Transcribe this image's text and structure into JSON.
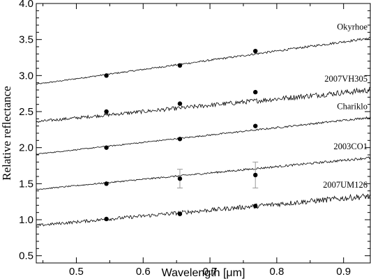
{
  "chart_data": {
    "type": "line",
    "xlabel": "Wavelength [μm]",
    "ylabel": "Relative reflectance",
    "xlim": [
      0.44,
      0.94
    ],
    "ylim": [
      0.4,
      4.0
    ],
    "xticks": [
      "0.5",
      "0.6",
      "0.7",
      "0.8",
      "0.9"
    ],
    "yticks": [
      "0.5",
      "1.0",
      "1.5",
      "2.0",
      "2.5",
      "3.0",
      "3.5",
      "4.0"
    ],
    "grid": false,
    "legend": "none",
    "series": [
      {
        "name": "Okyrhoe",
        "spectrum_start": 2.88,
        "spectrum_end": 3.52,
        "noise": 0.012,
        "points": [
          {
            "x": 0.545,
            "y": 3.0
          },
          {
            "x": 0.655,
            "y": 3.14
          },
          {
            "x": 0.768,
            "y": 3.34
          }
        ]
      },
      {
        "name": "2007VH305",
        "spectrum_start": 2.36,
        "spectrum_end": 2.8,
        "noise": 0.03,
        "points": [
          {
            "x": 0.545,
            "y": 2.5
          },
          {
            "x": 0.655,
            "y": 2.61
          },
          {
            "x": 0.768,
            "y": 2.77
          }
        ]
      },
      {
        "name": "Chariklo",
        "spectrum_start": 1.91,
        "spectrum_end": 2.42,
        "noise": 0.01,
        "points": [
          {
            "x": 0.545,
            "y": 2.0
          },
          {
            "x": 0.655,
            "y": 2.12
          },
          {
            "x": 0.768,
            "y": 2.3
          }
        ]
      },
      {
        "name": "2003CO1",
        "spectrum_start": 1.42,
        "spectrum_end": 1.86,
        "noise": 0.012,
        "points": [
          {
            "x": 0.545,
            "y": 1.5
          },
          {
            "x": 0.655,
            "y": 1.57,
            "error": 0.13
          },
          {
            "x": 0.768,
            "y": 1.62,
            "error": 0.18
          }
        ]
      },
      {
        "name": "2007UM126",
        "spectrum_start": 0.92,
        "spectrum_end": 1.33,
        "noise": 0.03,
        "points": [
          {
            "x": 0.545,
            "y": 1.01
          },
          {
            "x": 0.655,
            "y": 1.08
          },
          {
            "x": 0.768,
            "y": 1.19
          }
        ]
      }
    ],
    "colors": {
      "spectrum": "#000000",
      "points": "#000000",
      "errorbars": "#999999"
    }
  }
}
